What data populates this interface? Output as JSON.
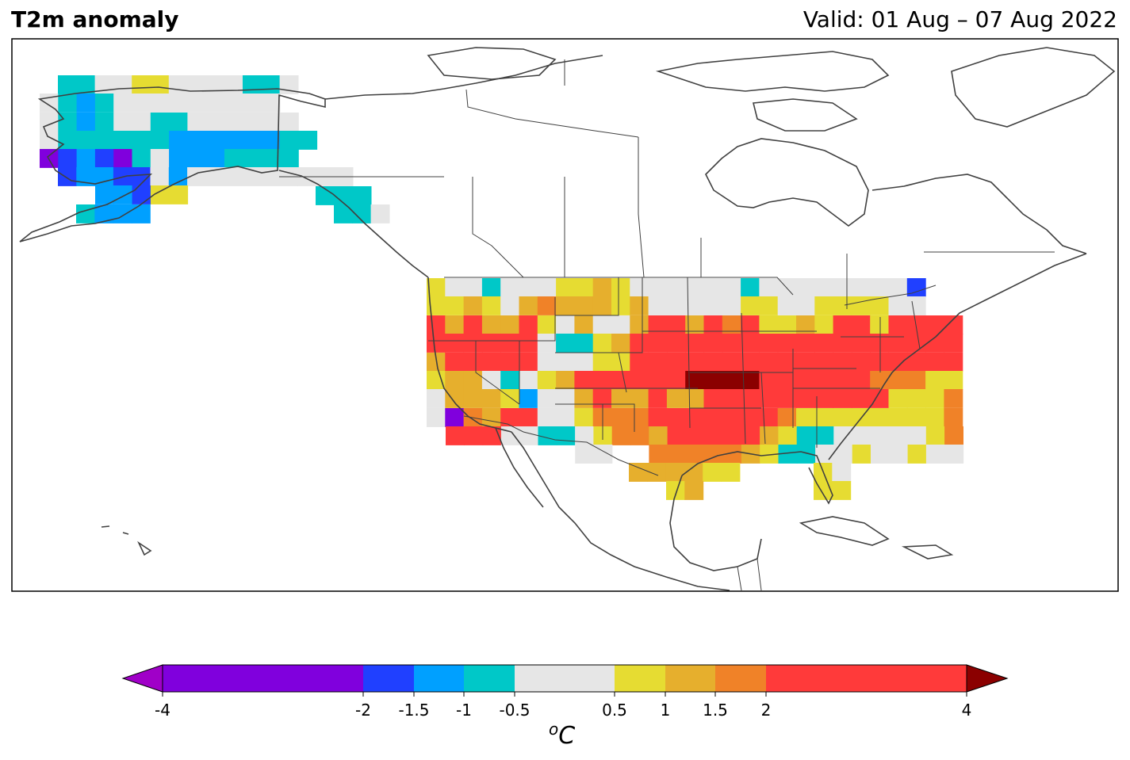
{
  "header": {
    "title": "T2m anomaly",
    "valid": "Valid: 01 Aug – 07 Aug 2022"
  },
  "colorbar": {
    "unit_sup": "o",
    "unit": "C",
    "ticks": [
      "-4",
      "-2",
      "-1.5",
      "-1",
      "-0.5",
      "0.5",
      "1",
      "1.5",
      "2",
      "4"
    ],
    "bins": [
      {
        "from": -4,
        "to": -2,
        "color": "#8000dd"
      },
      {
        "from": -2,
        "to": -1.5,
        "color": "#2040ff"
      },
      {
        "from": -1.5,
        "to": -1,
        "color": "#00a0ff"
      },
      {
        "from": -1,
        "to": -0.5,
        "color": "#00c8c8"
      },
      {
        "from": -0.5,
        "to": 0.5,
        "color": "#e6e6e6"
      },
      {
        "from": 0.5,
        "to": 1,
        "color": "#e6dc32"
      },
      {
        "from": 1,
        "to": 1.5,
        "color": "#e6af2d"
      },
      {
        "from": 1.5,
        "to": 2,
        "color": "#f08228"
      },
      {
        "from": 2,
        "to": 4,
        "color": "#ff3a3a"
      }
    ],
    "under_color": "#a000c8",
    "over_color": "#8b0000"
  },
  "map": {
    "region": "North America",
    "projection": "lat-lon",
    "colors": {
      "coast": "#404040",
      "border": "#404040"
    }
  }
}
